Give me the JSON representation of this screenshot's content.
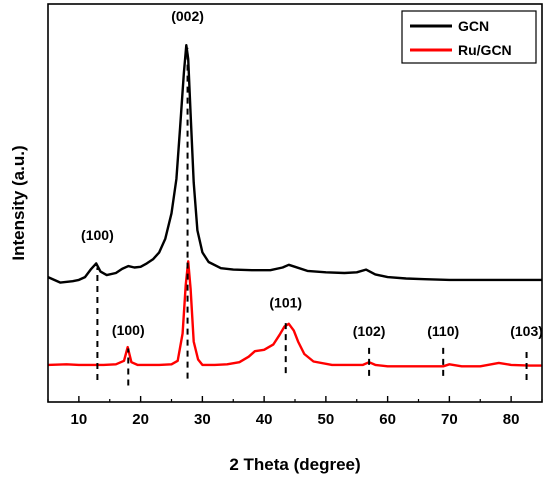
{
  "chart_data": {
    "type": "line",
    "title": "",
    "xlabel": "2 Theta (degree)",
    "ylabel": "Intensity (a.u.)",
    "xlim": [
      5,
      85
    ],
    "x_ticks": [
      10,
      20,
      30,
      40,
      50,
      60,
      70,
      80
    ],
    "y_ticks_visible": false,
    "legend_position": "top-right",
    "series": [
      {
        "name": "GCN",
        "color": "#000000",
        "x": [
          5,
          7,
          9,
          10,
          11,
          12,
          12.8,
          13.5,
          14.5,
          16,
          17,
          18,
          19,
          20,
          21,
          22,
          23,
          24,
          25,
          25.8,
          26.4,
          27,
          27.4,
          27.7,
          28.1,
          28.6,
          29.2,
          30,
          31,
          33,
          35,
          38,
          41,
          43,
          44,
          45,
          47,
          50,
          53,
          55,
          56.5,
          58,
          60,
          63,
          66,
          70,
          75,
          80,
          85
        ],
        "y": [
          6.2,
          5.4,
          5.6,
          5.8,
          6.2,
          7.4,
          8.2,
          7.0,
          6.5,
          6.8,
          7.4,
          7.8,
          7.6,
          7.7,
          8.2,
          8.8,
          9.8,
          11.8,
          15.5,
          20.5,
          28,
          36,
          40,
          38,
          30,
          20,
          13,
          9.8,
          8.4,
          7.5,
          7.3,
          7.2,
          7.2,
          7.6,
          8.0,
          7.7,
          7.1,
          6.9,
          6.8,
          6.9,
          7.3,
          6.6,
          6.2,
          6.0,
          5.9,
          5.8,
          5.8,
          5.8,
          5.8
        ]
      },
      {
        "name": "Ru/GCN",
        "color": "#ff0000",
        "x": [
          5,
          8,
          10,
          12,
          14,
          16,
          17.3,
          17.9,
          18.5,
          19.5,
          21,
          23,
          25,
          26,
          26.8,
          27.3,
          27.7,
          28.1,
          28.6,
          29.3,
          30,
          32,
          34,
          36,
          37.5,
          38.5,
          40,
          41.5,
          42.5,
          43.3,
          44,
          44.8,
          45.5,
          46.5,
          48,
          51,
          54,
          56,
          57,
          58,
          60,
          63,
          66,
          69,
          70,
          72,
          75,
          78,
          80,
          83,
          85
        ],
        "y": [
          -6.6,
          -6.5,
          -6.6,
          -6.6,
          -6.6,
          -6.5,
          -6.0,
          -4.0,
          -6.2,
          -6.6,
          -6.6,
          -6.6,
          -6.5,
          -6.0,
          -2.0,
          5.0,
          8.5,
          4.5,
          -3.2,
          -5.8,
          -6.6,
          -6.6,
          -6.5,
          -6.2,
          -5.4,
          -4.6,
          -4.4,
          -3.6,
          -2.2,
          -1.0,
          -0.6,
          -1.6,
          -3.2,
          -5.0,
          -6.1,
          -6.6,
          -6.6,
          -6.6,
          -6.2,
          -6.6,
          -6.8,
          -6.8,
          -6.8,
          -6.8,
          -6.5,
          -6.8,
          -6.8,
          -6.3,
          -6.6,
          -6.7,
          -6.7
        ]
      }
    ],
    "annotations": [
      {
        "label": "(002)",
        "x": 27.6,
        "label_y": 43.5,
        "line_from": -8.6,
        "line_to": 39.6
      },
      {
        "label": "(100)",
        "x": 13.0,
        "label_y": 11.6,
        "line_from": -8.8,
        "line_to": 7.6
      },
      {
        "label": "(100)",
        "x": 18.0,
        "label_y": -2.2,
        "line_from": -9.6,
        "line_to": -4.2
      },
      {
        "label": "(101)",
        "x": 43.5,
        "label_y": 1.8,
        "line_from": -7.8,
        "line_to": -0.5
      },
      {
        "label": "(102)",
        "x": 57.0,
        "label_y": -2.4,
        "line_from": -8.2,
        "line_to": -4.0
      },
      {
        "label": "(110)",
        "x": 69.0,
        "label_y": -2.4,
        "line_from": -8.2,
        "line_to": -4.0
      },
      {
        "label": "(103)",
        "x": 82.5,
        "label_y": -2.4,
        "line_from": -8.8,
        "line_to": -4.0
      }
    ]
  }
}
